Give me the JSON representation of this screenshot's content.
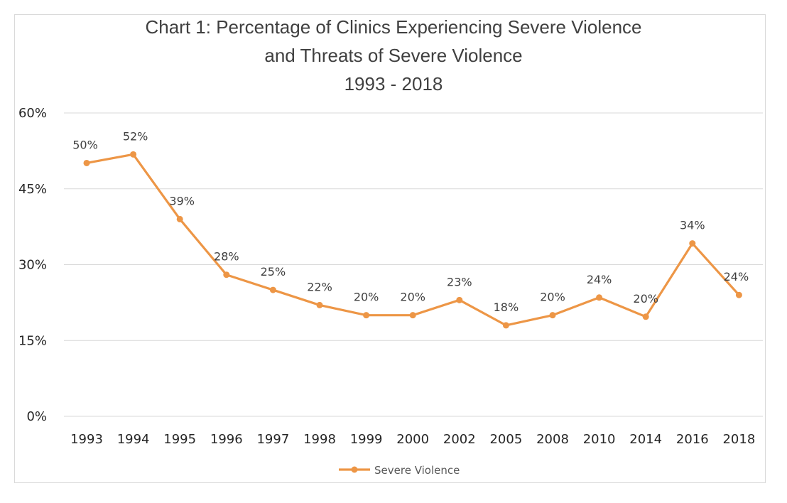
{
  "chart_data": {
    "type": "line",
    "title": [
      "Chart 1: Percentage of Clinics Experiencing Severe Violence",
      "and Threats of Severe Violence",
      "1993 - 2018"
    ],
    "categories": [
      "1993",
      "1994",
      "1995",
      "1996",
      "1997",
      "1998",
      "1999",
      "2000",
      "2002",
      "2005",
      "2008",
      "2010",
      "2014",
      "2016",
      "2018"
    ],
    "series": [
      {
        "name": "Severe Violence",
        "values": [
          50.1,
          51.8,
          39,
          28,
          25,
          22,
          20,
          20,
          23,
          18,
          20,
          23.5,
          19.7,
          34.2,
          24
        ],
        "labels": [
          "50%",
          "52%",
          "39%",
          "28%",
          "25%",
          "22%",
          "20%",
          "20%",
          "23%",
          "18%",
          "20%",
          "24%",
          "20%",
          "34%",
          "24%"
        ],
        "color": "#ED9646"
      }
    ],
    "yticks": [
      "0%",
      "15%",
      "30%",
      "45%",
      "60%"
    ],
    "ytick_values": [
      0,
      15,
      30,
      45,
      60
    ],
    "ylim": [
      0,
      60
    ],
    "grid": true,
    "legend_position": "bottom"
  }
}
